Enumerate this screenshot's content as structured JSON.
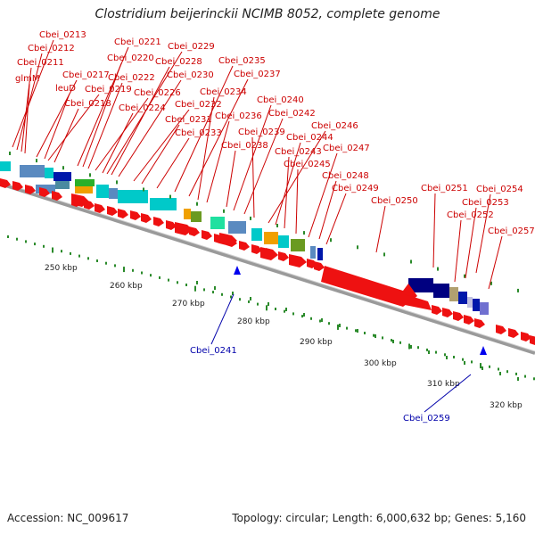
{
  "title": "Clostridium beijerinckii NCIMB 8052, complete genome",
  "footer": {
    "accession": "Accession: NC_009617",
    "topology": "Topology: circular; Length: 6,000,632 bp; Genes: 5,160"
  },
  "map": {
    "backbone_color": "#999999",
    "forward_gene_color": "#ee1111",
    "label_color_top": "#cc0000",
    "label_color_reverse": "#0000aa",
    "scale_ticks": [
      "250 kbp",
      "260 kbp",
      "270 kbp",
      "280 kbp",
      "290 kbp",
      "300 kbp",
      "310 kbp",
      "320 kbp"
    ],
    "top_gene_labels": [
      "Cbei_0213",
      "Cbei_0212",
      "Cbei_0211",
      "glmM",
      "Cbei_0217",
      "leuD",
      "Cbei_0219",
      "Cbei_0218",
      "Cbei_0221",
      "Cbei_0220",
      "Cbei_0222",
      "Cbei_0226",
      "Cbei_0224",
      "Cbei_0229",
      "Cbei_0228",
      "Cbei_0230",
      "Cbei_0232",
      "Cbei_0231",
      "Cbei_0233",
      "Cbei_0235",
      "Cbei_0237",
      "Cbei_0234",
      "Cbei_0236",
      "Cbei_0238",
      "Cbei_0240",
      "Cbei_0242",
      "Cbei_0239",
      "Cbei_0246",
      "Cbei_0244",
      "Cbei_0243",
      "Cbei_0245",
      "Cbei_0247",
      "Cbei_0248",
      "Cbei_0249",
      "Cbei_0250",
      "Cbei_0251",
      "Cbei_0254",
      "Cbei_0253",
      "Cbei_0252",
      "Cbei_0257"
    ],
    "reverse_gene_labels": [
      "Cbei_0241",
      "Cbei_0259"
    ]
  }
}
